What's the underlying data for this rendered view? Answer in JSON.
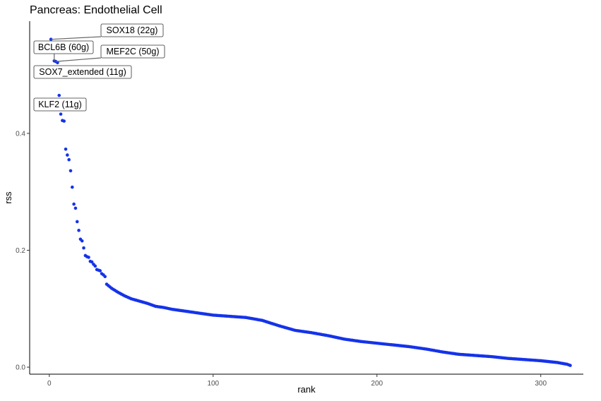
{
  "chart_data": {
    "type": "scatter",
    "title": "Pancreas: Endothelial Cell",
    "xlabel": "rank",
    "ylabel": "rss",
    "xlim": [
      -12,
      326
    ],
    "ylim": [
      -0.012,
      0.592
    ],
    "x_ticks": [
      0,
      100,
      200,
      300
    ],
    "y_ticks": [
      0.0,
      0.2,
      0.4
    ],
    "x_tick_labels": [
      "0",
      "100",
      "200",
      "300"
    ],
    "y_tick_labels": [
      "0.0",
      "0.2",
      "0.4"
    ],
    "grid": false,
    "legend": "none",
    "point_color": "#1533ea",
    "leading_points": [
      [
        1,
        0.561
      ],
      [
        3,
        0.524
      ],
      [
        4,
        0.523
      ],
      [
        5,
        0.521
      ],
      [
        6,
        0.465
      ],
      [
        7,
        0.433
      ],
      [
        8,
        0.422
      ],
      [
        9,
        0.421
      ],
      [
        10,
        0.373
      ],
      [
        11,
        0.363
      ],
      [
        12,
        0.355
      ],
      [
        13,
        0.336
      ],
      [
        14,
        0.308
      ],
      [
        15,
        0.279
      ],
      [
        16,
        0.272
      ],
      [
        17,
        0.249
      ],
      [
        18,
        0.234
      ],
      [
        19,
        0.219
      ],
      [
        20,
        0.216
      ],
      [
        21,
        0.204
      ],
      [
        22,
        0.191
      ],
      [
        23,
        0.189
      ],
      [
        24,
        0.188
      ],
      [
        25,
        0.181
      ],
      [
        26,
        0.18
      ],
      [
        27,
        0.176
      ],
      [
        28,
        0.173
      ],
      [
        29,
        0.167
      ],
      [
        30,
        0.166
      ],
      [
        31,
        0.165
      ],
      [
        32,
        0.16
      ],
      [
        33,
        0.158
      ],
      [
        34,
        0.155
      ]
    ],
    "trend_anchors": [
      [
        35,
        0.142
      ],
      [
        38,
        0.135
      ],
      [
        42,
        0.128
      ],
      [
        46,
        0.122
      ],
      [
        50,
        0.117
      ],
      [
        55,
        0.113
      ],
      [
        60,
        0.109
      ],
      [
        65,
        0.104
      ],
      [
        70,
        0.102
      ],
      [
        75,
        0.099
      ],
      [
        80,
        0.097
      ],
      [
        90,
        0.093
      ],
      [
        100,
        0.089
      ],
      [
        110,
        0.087
      ],
      [
        120,
        0.085
      ],
      [
        130,
        0.08
      ],
      [
        140,
        0.071
      ],
      [
        150,
        0.063
      ],
      [
        160,
        0.059
      ],
      [
        170,
        0.054
      ],
      [
        180,
        0.048
      ],
      [
        190,
        0.044
      ],
      [
        200,
        0.041
      ],
      [
        210,
        0.038
      ],
      [
        220,
        0.035
      ],
      [
        230,
        0.031
      ],
      [
        240,
        0.026
      ],
      [
        250,
        0.022
      ],
      [
        260,
        0.02
      ],
      [
        270,
        0.018
      ],
      [
        280,
        0.015
      ],
      [
        290,
        0.013
      ],
      [
        300,
        0.011
      ],
      [
        310,
        0.008
      ],
      [
        316,
        0.005
      ],
      [
        318,
        0.003
      ]
    ],
    "annotations": [
      {
        "text": "SOX18 (22g)",
        "x": 1,
        "y": 0.561
      },
      {
        "text": "BCL6B (60g)",
        "x": 3,
        "y": 0.524
      },
      {
        "text": "MEF2C (50g)",
        "x": 4,
        "y": 0.523
      },
      {
        "text": "SOX7_extended (11g)",
        "x": 5,
        "y": 0.521
      },
      {
        "text": "KLF2 (11g)",
        "x": 6,
        "y": 0.465
      }
    ]
  }
}
